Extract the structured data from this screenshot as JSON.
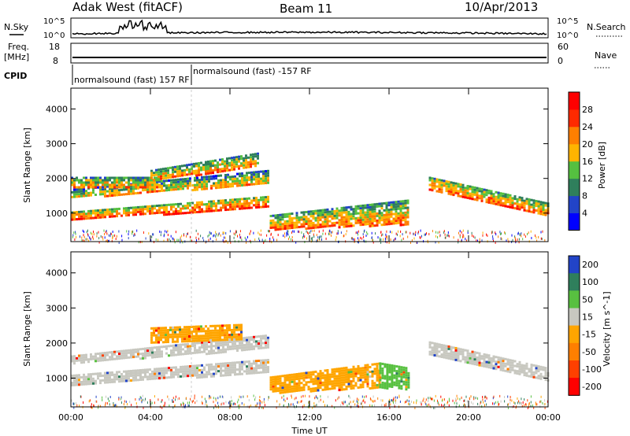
{
  "header": {
    "station": "Adak West (fitACF)",
    "beam": "Beam 11",
    "date": "10/Apr/2013"
  },
  "top_panels": {
    "nsky_label": "N.Sky",
    "nsky_ticks": [
      "10^5",
      "10^0"
    ],
    "nsearch_label": "N.Search",
    "nsearch_ticks": [
      "10^5",
      "10^0"
    ],
    "freq_label_line1": "Freq.",
    "freq_label_line2": "[MHz]",
    "freq_ticks": [
      "18",
      "8"
    ],
    "nave_label": "Nave",
    "nave_ticks": [
      "60",
      "0"
    ],
    "cpid_label": "CPID",
    "cpid_segments": [
      {
        "text": "normalsound (fast) 157 RF",
        "start_hour": 0
      },
      {
        "text": "normalsound (fast) -157 RF",
        "start_hour": 6
      }
    ]
  },
  "chart_data": [
    {
      "type": "heatmap",
      "name": "power",
      "ylabel": "Slant Range [km]",
      "xlabel": "Time UT",
      "x_range_hours": [
        0,
        24
      ],
      "ylim": [
        180,
        4600
      ],
      "y_ticks": [
        "1000",
        "2000",
        "3000",
        "4000"
      ],
      "x_ticks": [
        "00:00",
        "04:00",
        "08:00",
        "12:00",
        "16:00",
        "20:00",
        "00:00"
      ],
      "colorbar": {
        "label": "Power [dB]",
        "ticks": [
          "4",
          "8",
          "12",
          "16",
          "20",
          "24",
          "28"
        ],
        "colors": [
          "#0000ff",
          "#2244c8",
          "#2f7f5c",
          "#55c040",
          "#ffb400",
          "#ff7f00",
          "#ff2a00",
          "#ff0000"
        ]
      },
      "echo_regions": [
        {
          "t0": 0.0,
          "t1": 9.9,
          "r0_start": 820,
          "r0_end": 1180,
          "r1_start": 1050,
          "r1_end": 1500,
          "level": 0.7
        },
        {
          "t0": 0.0,
          "t1": 9.9,
          "r0_start": 1450,
          "r0_end": 1850,
          "r1_start": 1700,
          "r1_end": 2250,
          "level": 0.35
        },
        {
          "t0": 0.0,
          "t1": 4.5,
          "r0_start": 1750,
          "r0_end": 1750,
          "r1_start": 2050,
          "r1_end": 2050,
          "level": 0.45
        },
        {
          "t0": 4.0,
          "t1": 9.4,
          "r0_start": 1950,
          "r0_end": 2350,
          "r1_start": 2250,
          "r1_end": 2750,
          "level": 0.5
        },
        {
          "t0": 10.0,
          "t1": 17.0,
          "r0_start": 550,
          "r0_end": 700,
          "r1_start": 950,
          "r1_end": 1400,
          "level": 0.5
        },
        {
          "t0": 18.0,
          "t1": 24.0,
          "r0_start": 1700,
          "r0_end": 900,
          "r1_start": 2050,
          "r1_end": 1300,
          "level": 0.6
        }
      ]
    },
    {
      "type": "heatmap",
      "name": "velocity",
      "ylabel": "Slant Range [km]",
      "xlabel": "Time UT",
      "x_range_hours": [
        0,
        24
      ],
      "ylim": [
        180,
        4600
      ],
      "y_ticks": [
        "1000",
        "2000",
        "3000",
        "4000"
      ],
      "x_ticks": [
        "00:00",
        "04:00",
        "08:00",
        "12:00",
        "16:00",
        "20:00",
        "00:00"
      ],
      "colorbar": {
        "label": "Velocity [m s^-1]",
        "ticks": [
          "200",
          "100",
          "50",
          "15",
          "-15",
          "-50",
          "-100",
          "-200"
        ],
        "colors": [
          "#2244c8",
          "#2f7f5c",
          "#58c040",
          "#c8c8c0",
          "#ffa500",
          "#ff7f00",
          "#ff4000",
          "#ff0000"
        ]
      },
      "echo_regions": [
        {
          "t0": 0.0,
          "t1": 9.9,
          "r0_start": 820,
          "r0_end": 1180,
          "r1_start": 1100,
          "r1_end": 1550,
          "color": "#c8c8c0"
        },
        {
          "t0": 0.0,
          "t1": 9.9,
          "r0_start": 1450,
          "r0_end": 1850,
          "r1_start": 1650,
          "r1_end": 2250,
          "color": "#c8c8c0"
        },
        {
          "t0": 4.0,
          "t1": 8.6,
          "r0_start": 2000,
          "r0_end": 2100,
          "r1_start": 2450,
          "r1_end": 2550,
          "color": "#ffa500"
        },
        {
          "t0": 10.0,
          "t1": 15.5,
          "r0_start": 600,
          "r0_end": 750,
          "r1_start": 1050,
          "r1_end": 1450,
          "color": "#ffa500"
        },
        {
          "t0": 15.5,
          "t1": 17.0,
          "r0_start": 750,
          "r0_end": 700,
          "r1_start": 1450,
          "r1_end": 1300,
          "color": "#58c040"
        },
        {
          "t0": 18.0,
          "t1": 24.0,
          "r0_start": 1700,
          "r0_end": 950,
          "r1_start": 2050,
          "r1_end": 1300,
          "color": "#c8c8c0"
        }
      ]
    }
  ]
}
